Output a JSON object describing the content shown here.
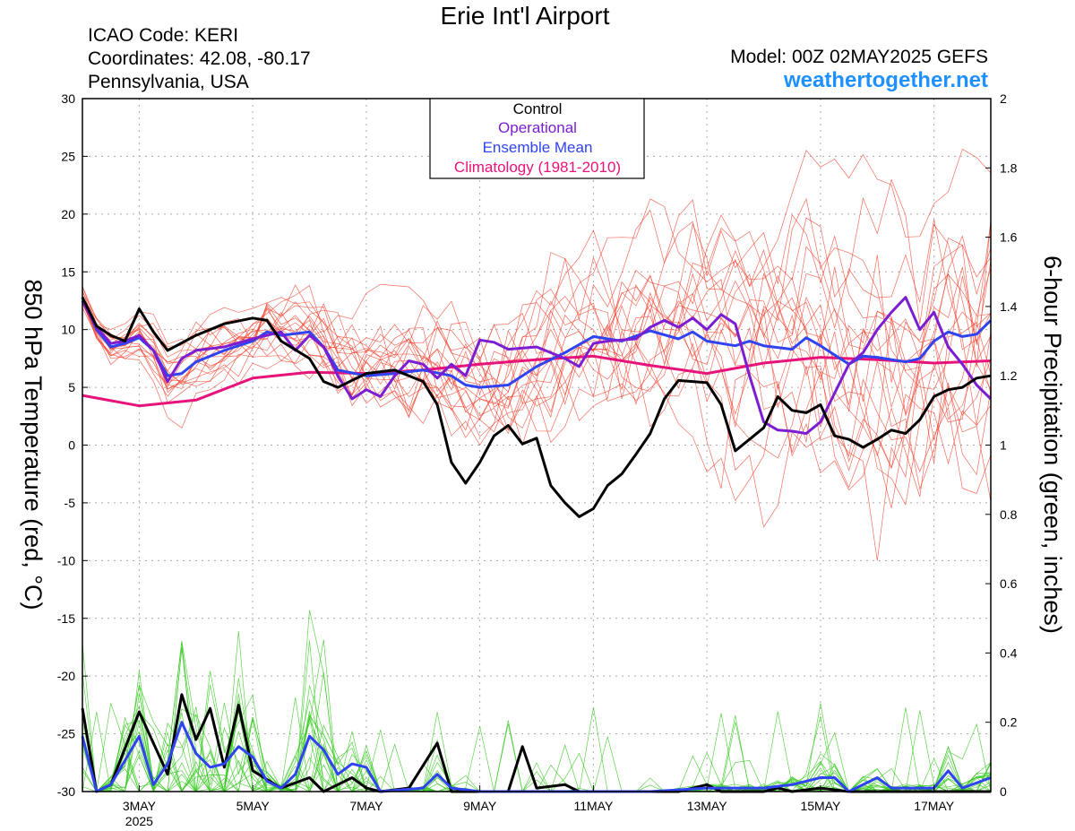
{
  "header": {
    "title": "Erie Int'l Airport",
    "icao": "ICAO Code: KERI",
    "coords": "Coordinates: 42.08, -80.17",
    "region": "Pennsylvania, USA",
    "model": "Model: 00Z 02MAY2025 GEFS",
    "site": "weathertogether.net"
  },
  "colors": {
    "members_temp": "#f03c28",
    "members_precip": "#34c81e",
    "control": "#000000",
    "operational": "#7b1ed2",
    "mean": "#2f44f0",
    "climatology": "#e6137a",
    "site": "#1e90ff"
  },
  "chart_data": {
    "type": "line",
    "title": "Erie Int'l Airport",
    "ylabel": "850 hPa Temperature (red, °C)",
    "y2label": "6-hour Precipitation (green, inches)",
    "x_unit": "days since 02MAY2025 00Z",
    "xlim": [
      0,
      16
    ],
    "ylim": [
      -30,
      30
    ],
    "y2lim": [
      0,
      2
    ],
    "grid": true,
    "legend_position": "top-center",
    "x_ticks": [
      {
        "x": 1,
        "label": "3MAY",
        "sub": "2025"
      },
      {
        "x": 3,
        "label": "5MAY",
        "sub": ""
      },
      {
        "x": 5,
        "label": "7MAY",
        "sub": ""
      },
      {
        "x": 7,
        "label": "9MAY",
        "sub": ""
      },
      {
        "x": 9,
        "label": "11MAY",
        "sub": ""
      },
      {
        "x": 11,
        "label": "13MAY",
        "sub": ""
      },
      {
        "x": 13,
        "label": "15MAY",
        "sub": ""
      },
      {
        "x": 15,
        "label": "17MAY",
        "sub": ""
      }
    ],
    "y_ticks": [
      "30",
      "25",
      "20",
      "15",
      "10",
      "5",
      "0",
      "-5",
      "-10",
      "-15",
      "-20",
      "-25",
      "-30"
    ],
    "y2_ticks": [
      "2",
      "1.8",
      "1.6",
      "1.4",
      "1.2",
      "1",
      "0.8",
      "0.6",
      "0.4",
      "0.2",
      "0"
    ],
    "legend": [
      "Control",
      "Operational",
      "Ensemble Mean",
      "Climatology (1981-2010)"
    ],
    "series": [
      {
        "name": "Climatology (1981-2010)",
        "kind": "temp",
        "points": [
          [
            0,
            4.3
          ],
          [
            1,
            3.4
          ],
          [
            2,
            3.9
          ],
          [
            3,
            5.8
          ],
          [
            4,
            6.3
          ],
          [
            5,
            6.2
          ],
          [
            6,
            6.5
          ],
          [
            7,
            7.0
          ],
          [
            8,
            7.4
          ],
          [
            9,
            7.7
          ],
          [
            10,
            6.9
          ],
          [
            11,
            6.2
          ],
          [
            12,
            7.1
          ],
          [
            13,
            7.6
          ],
          [
            14,
            7.4
          ],
          [
            15,
            7.1
          ],
          [
            16,
            7.3
          ]
        ]
      },
      {
        "name": "Ensemble Mean",
        "kind": "temp",
        "points": [
          [
            0,
            12.8
          ],
          [
            0.25,
            10
          ],
          [
            0.5,
            8.5
          ],
          [
            0.75,
            8.8
          ],
          [
            1,
            9.3
          ],
          [
            1.25,
            8.2
          ],
          [
            1.5,
            6.0
          ],
          [
            1.75,
            6.2
          ],
          [
            2,
            7.2
          ],
          [
            2.5,
            8.2
          ],
          [
            3,
            9.0
          ],
          [
            3.25,
            9.8
          ],
          [
            3.5,
            9.5
          ],
          [
            4,
            9.8
          ],
          [
            4.25,
            8.5
          ],
          [
            4.5,
            6.5
          ],
          [
            5,
            6.0
          ],
          [
            5.5,
            6.2
          ],
          [
            6,
            6.5
          ],
          [
            6.5,
            6.0
          ],
          [
            6.75,
            5.2
          ],
          [
            7,
            5.0
          ],
          [
            7.5,
            5.2
          ],
          [
            8,
            6.8
          ],
          [
            8.5,
            8.0
          ],
          [
            9,
            9.4
          ],
          [
            9.5,
            9.0
          ],
          [
            10,
            9.9
          ],
          [
            10.5,
            9.2
          ],
          [
            10.75,
            9.8
          ],
          [
            11,
            9.0
          ],
          [
            11.5,
            8.6
          ],
          [
            11.75,
            9.0
          ],
          [
            12,
            8.6
          ],
          [
            12.5,
            8.3
          ],
          [
            12.75,
            9.3
          ],
          [
            13,
            8.6
          ],
          [
            13.5,
            7.0
          ],
          [
            13.75,
            7.7
          ],
          [
            14,
            7.6
          ],
          [
            14.5,
            7.2
          ],
          [
            14.75,
            7.5
          ],
          [
            15,
            9.0
          ],
          [
            15.25,
            9.8
          ],
          [
            15.5,
            9.4
          ],
          [
            15.75,
            9.6
          ],
          [
            16,
            10.8
          ]
        ]
      },
      {
        "name": "Operational",
        "kind": "temp",
        "points": [
          [
            0,
            12.5
          ],
          [
            0.25,
            10.2
          ],
          [
            0.5,
            8.8
          ],
          [
            0.75,
            9.0
          ],
          [
            1,
            9.5
          ],
          [
            1.25,
            8.2
          ],
          [
            1.5,
            5.5
          ],
          [
            1.75,
            7.5
          ],
          [
            2,
            8.2
          ],
          [
            2.5,
            8.5
          ],
          [
            3,
            9.2
          ],
          [
            3.5,
            9.8
          ],
          [
            3.75,
            8.2
          ],
          [
            4,
            9.5
          ],
          [
            4.25,
            8.5
          ],
          [
            4.5,
            6.0
          ],
          [
            4.75,
            4.0
          ],
          [
            5,
            4.8
          ],
          [
            5.25,
            4.2
          ],
          [
            5.5,
            6.0
          ],
          [
            5.75,
            7.3
          ],
          [
            6,
            7.0
          ],
          [
            6.25,
            5.8
          ],
          [
            6.5,
            7.0
          ],
          [
            6.75,
            6.0
          ],
          [
            7,
            9.1
          ],
          [
            7.25,
            8.9
          ],
          [
            7.5,
            8.3
          ],
          [
            8,
            8.5
          ],
          [
            8.5,
            7.5
          ],
          [
            8.75,
            6.8
          ],
          [
            9,
            8.8
          ],
          [
            9.25,
            9.0
          ],
          [
            9.5,
            9.1
          ],
          [
            9.75,
            9.2
          ],
          [
            10,
            10.2
          ],
          [
            10.25,
            10.8
          ],
          [
            10.5,
            10.2
          ],
          [
            10.75,
            11.0
          ],
          [
            11,
            10.0
          ],
          [
            11.25,
            11.3
          ],
          [
            11.5,
            10.5
          ],
          [
            11.75,
            6.0
          ],
          [
            12,
            2.0
          ],
          [
            12.25,
            1.3
          ],
          [
            12.5,
            1.2
          ],
          [
            12.75,
            1.0
          ],
          [
            13,
            2.0
          ],
          [
            13.25,
            4.5
          ],
          [
            13.5,
            7.0
          ],
          [
            13.75,
            8.0
          ],
          [
            14,
            10.0
          ],
          [
            14.25,
            11.5
          ],
          [
            14.5,
            12.8
          ],
          [
            14.75,
            10.0
          ],
          [
            15,
            11.5
          ],
          [
            15.25,
            8.5
          ],
          [
            15.5,
            7.0
          ],
          [
            15.75,
            5.2
          ],
          [
            16,
            4.0
          ]
        ]
      },
      {
        "name": "Control",
        "kind": "temp",
        "points": [
          [
            0,
            12.8
          ],
          [
            0.25,
            10.3
          ],
          [
            0.5,
            9.5
          ],
          [
            0.75,
            9.0
          ],
          [
            1,
            11.8
          ],
          [
            1.25,
            9.8
          ],
          [
            1.5,
            8.2
          ],
          [
            2,
            9.5
          ],
          [
            2.5,
            10.5
          ],
          [
            3,
            11.0
          ],
          [
            3.25,
            10.8
          ],
          [
            3.5,
            9.0
          ],
          [
            4,
            7.5
          ],
          [
            4.25,
            5.5
          ],
          [
            4.5,
            5.0
          ],
          [
            5,
            6.2
          ],
          [
            5.5,
            6.5
          ],
          [
            6,
            5.5
          ],
          [
            6.25,
            3.5
          ],
          [
            6.5,
            -1.5
          ],
          [
            6.75,
            -3.3
          ],
          [
            7,
            -1.5
          ],
          [
            7.25,
            0.8
          ],
          [
            7.5,
            1.7
          ],
          [
            7.75,
            0.1
          ],
          [
            8,
            0.6
          ],
          [
            8.25,
            -3.5
          ],
          [
            8.5,
            -5.0
          ],
          [
            8.75,
            -6.2
          ],
          [
            9,
            -5.5
          ],
          [
            9.25,
            -3.5
          ],
          [
            9.5,
            -2.5
          ],
          [
            9.75,
            -0.8
          ],
          [
            10,
            1.0
          ],
          [
            10.25,
            4.0
          ],
          [
            10.5,
            5.6
          ],
          [
            11,
            5.4
          ],
          [
            11.25,
            3.5
          ],
          [
            11.5,
            -0.5
          ],
          [
            11.75,
            0.5
          ],
          [
            12,
            1.5
          ],
          [
            12.25,
            4.2
          ],
          [
            12.5,
            3.0
          ],
          [
            12.75,
            2.8
          ],
          [
            13,
            3.5
          ],
          [
            13.25,
            0.8
          ],
          [
            13.5,
            0.5
          ],
          [
            13.75,
            -0.2
          ],
          [
            14,
            0.5
          ],
          [
            14.25,
            1.3
          ],
          [
            14.5,
            1.0
          ],
          [
            14.75,
            2.2
          ],
          [
            15,
            4.2
          ],
          [
            15.25,
            4.8
          ],
          [
            15.5,
            5.0
          ],
          [
            15.75,
            5.8
          ],
          [
            16,
            6.0
          ]
        ]
      },
      {
        "name": "Control",
        "kind": "precip",
        "points": [
          [
            0,
            0.24
          ],
          [
            0.25,
            0
          ],
          [
            0.5,
            0.02
          ],
          [
            1,
            0.23
          ],
          [
            1.25,
            0.14
          ],
          [
            1.5,
            0.05
          ],
          [
            1.75,
            0.28
          ],
          [
            2,
            0.15
          ],
          [
            2.25,
            0.24
          ],
          [
            2.5,
            0.07
          ],
          [
            2.75,
            0.25
          ],
          [
            3,
            0.06
          ],
          [
            3.5,
            0.01
          ],
          [
            4,
            0.04
          ],
          [
            4.25,
            0
          ],
          [
            4.75,
            0.04
          ],
          [
            5,
            0.01
          ],
          [
            5.25,
            0.0
          ],
          [
            5.75,
            0.01
          ],
          [
            6.25,
            0.14
          ],
          [
            6.5,
            0
          ],
          [
            7,
            0
          ],
          [
            7.5,
            0
          ],
          [
            7.75,
            0.13
          ],
          [
            8,
            0.01
          ],
          [
            8.5,
            0.02
          ],
          [
            8.75,
            0
          ],
          [
            10,
            0
          ],
          [
            10.5,
            0
          ],
          [
            11,
            0.02
          ],
          [
            11.25,
            0
          ],
          [
            12,
            0
          ],
          [
            12.25,
            0.01
          ],
          [
            12.5,
            0
          ],
          [
            13,
            0.01
          ],
          [
            13.5,
            0
          ],
          [
            16,
            0
          ]
        ]
      },
      {
        "name": "Ensemble Mean",
        "kind": "precip",
        "points": [
          [
            0,
            0.16
          ],
          [
            0.25,
            0
          ],
          [
            0.5,
            0.02
          ],
          [
            1,
            0.16
          ],
          [
            1.25,
            0.02
          ],
          [
            1.5,
            0.08
          ],
          [
            1.75,
            0.2
          ],
          [
            2,
            0.11
          ],
          [
            2.25,
            0.07
          ],
          [
            2.5,
            0.08
          ],
          [
            2.75,
            0.13
          ],
          [
            3,
            0.1
          ],
          [
            3.25,
            0.03
          ],
          [
            3.5,
            0.01
          ],
          [
            3.75,
            0.05
          ],
          [
            4,
            0.16
          ],
          [
            4.25,
            0.12
          ],
          [
            4.5,
            0.05
          ],
          [
            4.75,
            0.08
          ],
          [
            5,
            0.07
          ],
          [
            5.25,
            0
          ],
          [
            6,
            0.01
          ],
          [
            6.25,
            0.05
          ],
          [
            6.5,
            0.01
          ],
          [
            7,
            0
          ],
          [
            10,
            0
          ],
          [
            11,
            0.01
          ],
          [
            12,
            0.01
          ],
          [
            12.5,
            0.02
          ],
          [
            13,
            0.04
          ],
          [
            13.25,
            0.04
          ],
          [
            13.5,
            0
          ],
          [
            14,
            0.04
          ],
          [
            14.25,
            0.01
          ],
          [
            15,
            0.01
          ],
          [
            15.25,
            0.06
          ],
          [
            15.5,
            0.01
          ],
          [
            16,
            0.04
          ]
        ]
      }
    ]
  }
}
